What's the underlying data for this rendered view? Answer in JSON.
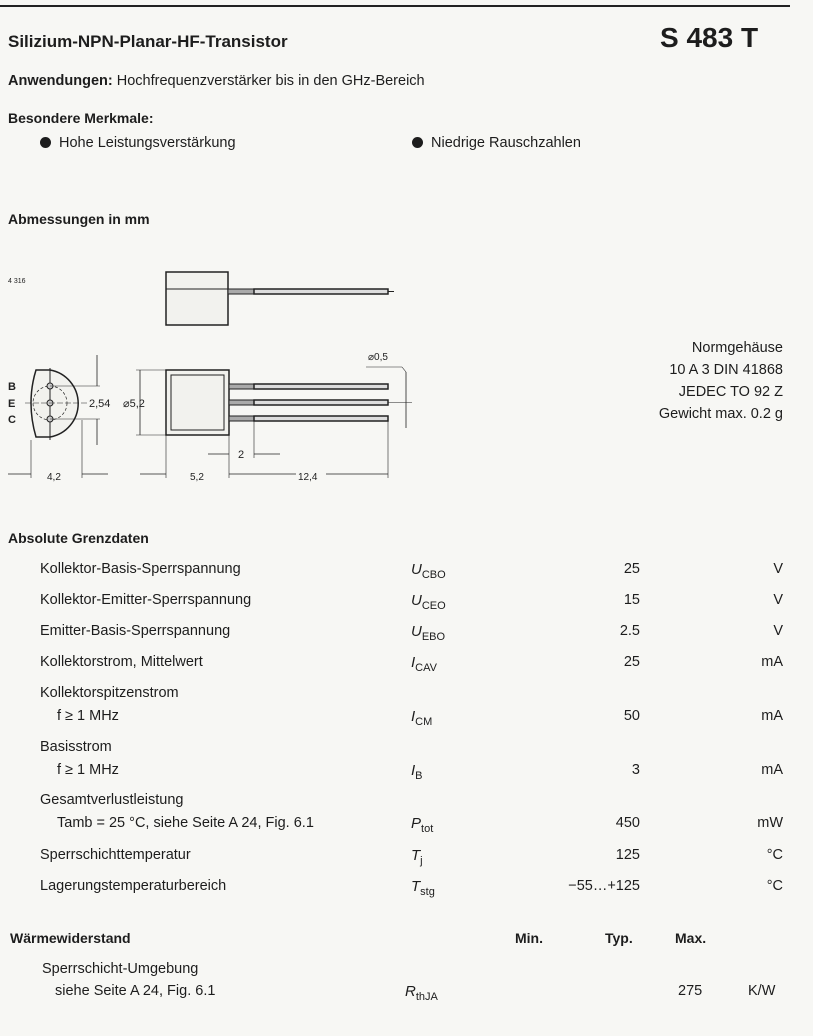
{
  "header": {
    "title": "Silizium-NPN-Planar-HF-Transistor",
    "part_number": "S 483 T"
  },
  "applications": {
    "label": "Anwendungen:",
    "text": "Hochfrequenzverstärker bis in den GHz-Bereich"
  },
  "features": {
    "heading": "Besondere Merkmale:",
    "items": [
      "Hohe Leistungsverstärkung",
      "Niedrige Rauschzahlen"
    ]
  },
  "dimensions": {
    "heading": "Abmessungen in mm",
    "drawing": {
      "ref": "4 316",
      "pins": [
        "B",
        "E",
        "C"
      ],
      "pitch": "2,54",
      "diameter": "⌀5,2",
      "lead_diameter": "⌀0,5",
      "lead_offset": "2",
      "width": "4,2",
      "body_length": "5,2",
      "lead_length": "12,4"
    },
    "package": [
      "Normgehäuse",
      "10 A 3 DIN 41868",
      "JEDEC TO 92 Z",
      "Gewicht max. 0.2 g"
    ]
  },
  "ratings": {
    "heading": "Absolute Grenzdaten",
    "rows": [
      {
        "label": "Kollektor-Basis-Sperrspannung",
        "cond": "",
        "sym": "U",
        "sub": "CBO",
        "value": "25",
        "unit": "V"
      },
      {
        "label": "Kollektor-Emitter-Sperrspannung",
        "cond": "",
        "sym": "U",
        "sub": "CEO",
        "value": "15",
        "unit": "V"
      },
      {
        "label": "Emitter-Basis-Sperrspannung",
        "cond": "",
        "sym": "U",
        "sub": "EBO",
        "value": "2.5",
        "unit": "V"
      },
      {
        "label": "Kollektorstrom, Mittelwert",
        "cond": "",
        "sym": "I",
        "sub": "CAV",
        "value": "25",
        "unit": "mA"
      },
      {
        "label": "Kollektorspitzenstrom",
        "cond": "f ≥ 1 MHz",
        "sym": "I",
        "sub": "CM",
        "value": "50",
        "unit": "mA"
      },
      {
        "label": "Basisstrom",
        "cond": "f ≥ 1 MHz",
        "sym": "I",
        "sub": "B",
        "value": "3",
        "unit": "mA"
      },
      {
        "label": "Gesamtverlustleistung",
        "cond": "Tamb = 25 °C, siehe Seite A 24, Fig. 6.1",
        "sym": "P",
        "sub": "tot",
        "value": "450",
        "unit": "mW"
      },
      {
        "label": "Sperrschichttemperatur",
        "cond": "",
        "sym": "T",
        "sub": "j",
        "value": "125",
        "unit": "°C"
      },
      {
        "label": "Lagerungstemperaturbereich",
        "cond": "",
        "sym": "T",
        "sub": "stg",
        "value": "−55…+125",
        "unit": "°C"
      }
    ]
  },
  "thermal": {
    "heading": "Wärmewiderstand",
    "columns": [
      "Min.",
      "Typ.",
      "Max."
    ],
    "row": {
      "label": "Sperrschicht-Umgebung",
      "cond": "siehe Seite A 24, Fig. 6.1",
      "sym": "R",
      "sub": "thJA",
      "min": "",
      "typ": "",
      "max": "275",
      "unit": "K/W"
    }
  }
}
